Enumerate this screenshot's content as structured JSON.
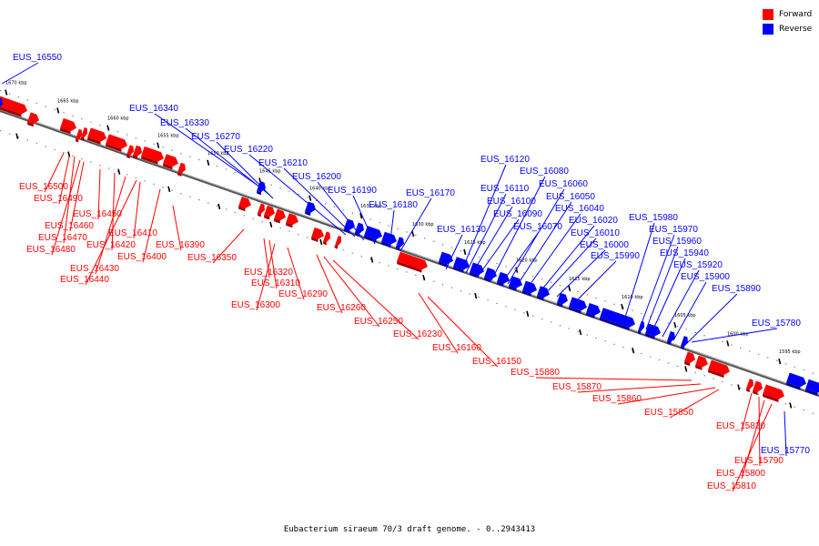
{
  "caption": "Eubacterium siraeum 70/3 draft genome. - 0..2943413",
  "legend": [
    {
      "label": "Forward",
      "color": "#ff0000"
    },
    {
      "label": "Reverse",
      "color": "#0000ff"
    }
  ],
  "colors": {
    "forward": "#ff0000",
    "reverse": "#0000ff",
    "axis": "#666666"
  },
  "ticks": [
    "1670 kbp",
    "1665 kbp",
    "1660 kbp",
    "1655 kbp",
    "1650 kbp",
    "1645 kbp",
    "1640 kbp",
    "1635 kbp",
    "1630 kbp",
    "1625 kbp",
    "1620 kbp",
    "1615 kbp",
    "1610 kbp",
    "1605 kbp",
    "1600 kbp",
    "1595 kbp"
  ],
  "reverse_labels": [
    "EUS_16550",
    "EUS_16340",
    "EUS_16330",
    "EUS_16270",
    "EUS_16220",
    "EUS_16210",
    "EUS_16200",
    "EUS_16190",
    "EUS_16180",
    "EUS_16170",
    "EUS_16130",
    "EUS_16120",
    "EUS_16110",
    "EUS_16100",
    "EUS_16090",
    "EUS_16080",
    "EUS_16070",
    "EUS_16060",
    "EUS_16050",
    "EUS_16040",
    "EUS_16020",
    "EUS_16010",
    "EUS_16000",
    "EUS_15990",
    "EUS_15980",
    "EUS_15970",
    "EUS_15960",
    "EUS_15940",
    "EUS_15920",
    "EUS_15900",
    "EUS_15890",
    "EUS_15780",
    "EUS_15770"
  ],
  "forward_labels": [
    "EUS_16500",
    "EUS_16490",
    "EUS_16470",
    "EUS_16480",
    "EUS_16460",
    "EUS_16450",
    "EUS_16420",
    "EUS_16430",
    "EUS_16440",
    "EUS_16410",
    "EUS_16400",
    "EUS_16390",
    "EUS_16350",
    "EUS_16320",
    "EUS_16310",
    "EUS_16300",
    "EUS_16290",
    "EUS_16260",
    "EUS_16250",
    "EUS_16230",
    "EUS_16160",
    "EUS_16150",
    "EUS_15880",
    "EUS_15870",
    "EUS_15860",
    "EUS_15850",
    "EUS_15820",
    "EUS_15790",
    "EUS_15800",
    "EUS_15810"
  ]
}
